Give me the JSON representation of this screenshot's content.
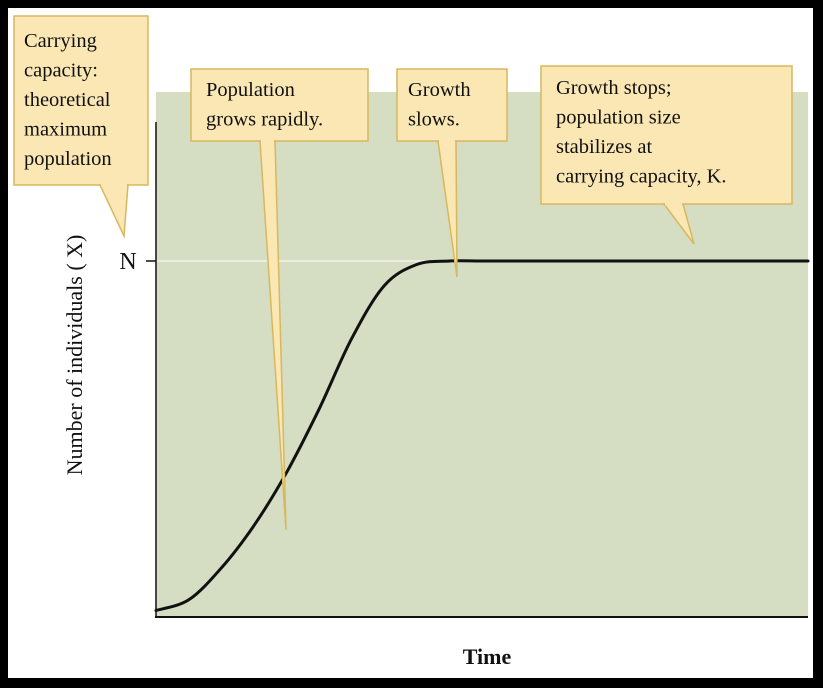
{
  "chart_data": {
    "type": "line",
    "title": "",
    "xlabel": "Time",
    "ylabel": "Number of individuals ( X)",
    "y_ticks": [
      {
        "label": "N",
        "value": 1.0
      }
    ],
    "grid": false,
    "colors": {
      "plot_background": "#d5ddc2",
      "curve": "#111111",
      "n_line": "#f2f2ea",
      "callout_fill": "#fbe7b4",
      "callout_border": "#d7b85e"
    },
    "series": [
      {
        "x": [
          0,
          0.05,
          0.1,
          0.15,
          0.2,
          0.25,
          0.3,
          0.35,
          0.4,
          0.45,
          0.5,
          0.55,
          0.6,
          1.0
        ],
        "y": [
          0.01,
          0.04,
          0.13,
          0.25,
          0.4,
          0.58,
          0.78,
          0.93,
          0.99,
          1.0,
          1.0,
          1.0,
          1.0,
          1.0
        ]
      }
    ],
    "annotations": [
      {
        "id": "carrying",
        "lines": [
          "Carrying",
          "capacity:",
          "theoretical",
          "maximum",
          "population"
        ]
      },
      {
        "id": "rapid",
        "lines": [
          "Population",
          "grows rapidly."
        ]
      },
      {
        "id": "slows",
        "lines": [
          "Growth",
          "slows."
        ]
      },
      {
        "id": "stops",
        "lines": [
          "Growth stops;",
          "population size",
          "stabilizes at",
          "carrying capacity, K."
        ]
      }
    ]
  }
}
